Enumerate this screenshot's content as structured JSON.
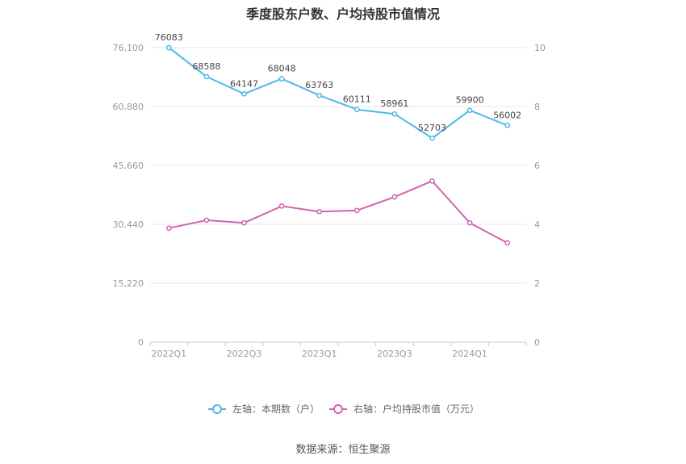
{
  "chart_data": {
    "type": "line",
    "title": "季度股东户数、户均持股市值情况",
    "categories": [
      "2022Q1",
      "2022Q2",
      "2022Q3",
      "2022Q4",
      "2023Q1",
      "2023Q2",
      "2023Q3",
      "2023Q4",
      "2024Q1",
      "2024Q2"
    ],
    "x_tick_labels": [
      "2022Q1",
      "2022Q3",
      "2023Q1",
      "2023Q3",
      "2024Q1"
    ],
    "left_axis": {
      "ticks": [
        "0",
        "15,220",
        "30,440",
        "45,660",
        "60,880",
        "76,100"
      ],
      "ylim": [
        0,
        76100
      ]
    },
    "right_axis": {
      "ticks": [
        "0",
        "2",
        "4",
        "6",
        "8",
        "10"
      ],
      "ylim": [
        0,
        10
      ]
    },
    "grid": true,
    "legend_position": "bottom",
    "series": [
      {
        "name": "左轴：本期数（户）",
        "axis": "left",
        "color": "#4db8e8",
        "values": [
          76083,
          68588,
          64147,
          68048,
          63763,
          60111,
          58961,
          52703,
          59900,
          56002
        ],
        "labels": [
          "76083",
          "68588",
          "64147",
          "68048",
          "63763",
          "60111",
          "58961",
          "52703",
          "59900",
          "56002"
        ]
      },
      {
        "name": "右轴：户均持股市值（万元）",
        "axis": "right",
        "color": "#d163b0",
        "values": [
          3.87,
          4.14,
          4.05,
          4.62,
          4.43,
          4.47,
          4.93,
          5.47,
          4.05,
          3.37
        ]
      }
    ]
  },
  "source": "数据来源：恒生聚源"
}
